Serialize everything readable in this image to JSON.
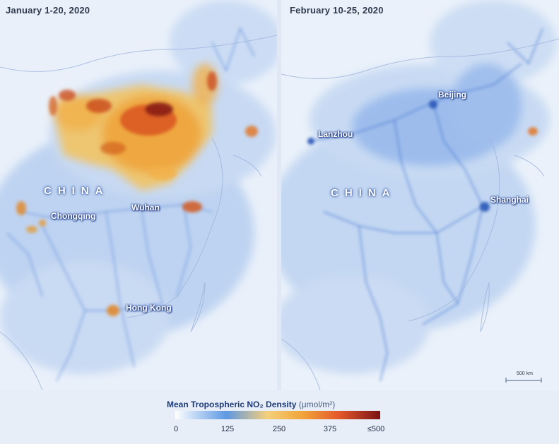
{
  "panels": {
    "left": {
      "date": "January 1-20, 2020",
      "country": "CHINA",
      "cities": [
        "Chongqing",
        "Wuhan",
        "Hong Kong"
      ]
    },
    "right": {
      "date": "February 10-25, 2020",
      "country": "CHINA",
      "cities": [
        "Beijing",
        "Lanzhou",
        "Shanghai"
      ],
      "scale": "500 km"
    }
  },
  "legend": {
    "title": "Mean Tropospheric NO₂ Density",
    "unit": "(μmol/m²)",
    "ticks": [
      "0",
      "125",
      "250",
      "375",
      "≤500"
    ],
    "colors": [
      "#ffffff",
      "#5f98e2",
      "#f4d07a",
      "#e4582b",
      "#7a1313"
    ]
  }
}
